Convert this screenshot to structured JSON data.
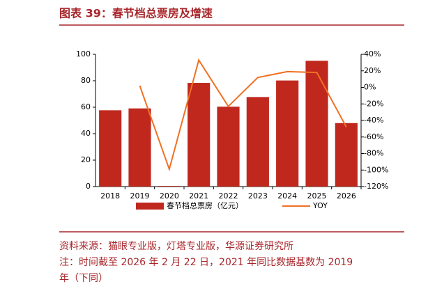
{
  "header": {
    "title": "图表 39：春节档总票房及增速"
  },
  "chart_data": {
    "type": "bar-line",
    "categories": [
      "2018",
      "2019",
      "2020",
      "2021",
      "2022",
      "2023",
      "2024",
      "2025",
      "2026"
    ],
    "series": [
      {
        "name": "春节档总票房（亿元）",
        "type": "bar",
        "color": "#c0281e",
        "values": [
          57.7,
          59.1,
          0.5,
          78.4,
          60.4,
          67.7,
          80.2,
          95.1,
          48
        ]
      },
      {
        "name": "YOY",
        "type": "line",
        "axis": "y2",
        "color": "#f07024",
        "values": [
          null,
          2,
          -99,
          33,
          -23,
          12,
          19,
          18,
          -48
        ]
      }
    ],
    "ylim": [
      0,
      100
    ],
    "yticks": [
      0,
      20,
      40,
      60,
      80,
      100
    ],
    "y2lim": [
      -120,
      40
    ],
    "y2ticks": [
      {
        "value": -120,
        "label": "-120%"
      },
      {
        "value": -100,
        "label": "-100%"
      },
      {
        "value": -80,
        "label": "-80%"
      },
      {
        "value": -60,
        "label": "-60%"
      },
      {
        "value": -40,
        "label": "-40%"
      },
      {
        "value": -20,
        "label": "-20%"
      },
      {
        "value": 0,
        "label": "0%"
      },
      {
        "value": 20,
        "label": "20%"
      },
      {
        "value": 40,
        "label": "40%"
      }
    ]
  },
  "footer": {
    "source": "资料来源：猫眼专业版，灯塔专业版，华源证券研究所",
    "note": [
      "注：时间截至 2026 年 2 月 22 日，2021 年同比数据基数为 2019",
      "年（下同）"
    ]
  }
}
